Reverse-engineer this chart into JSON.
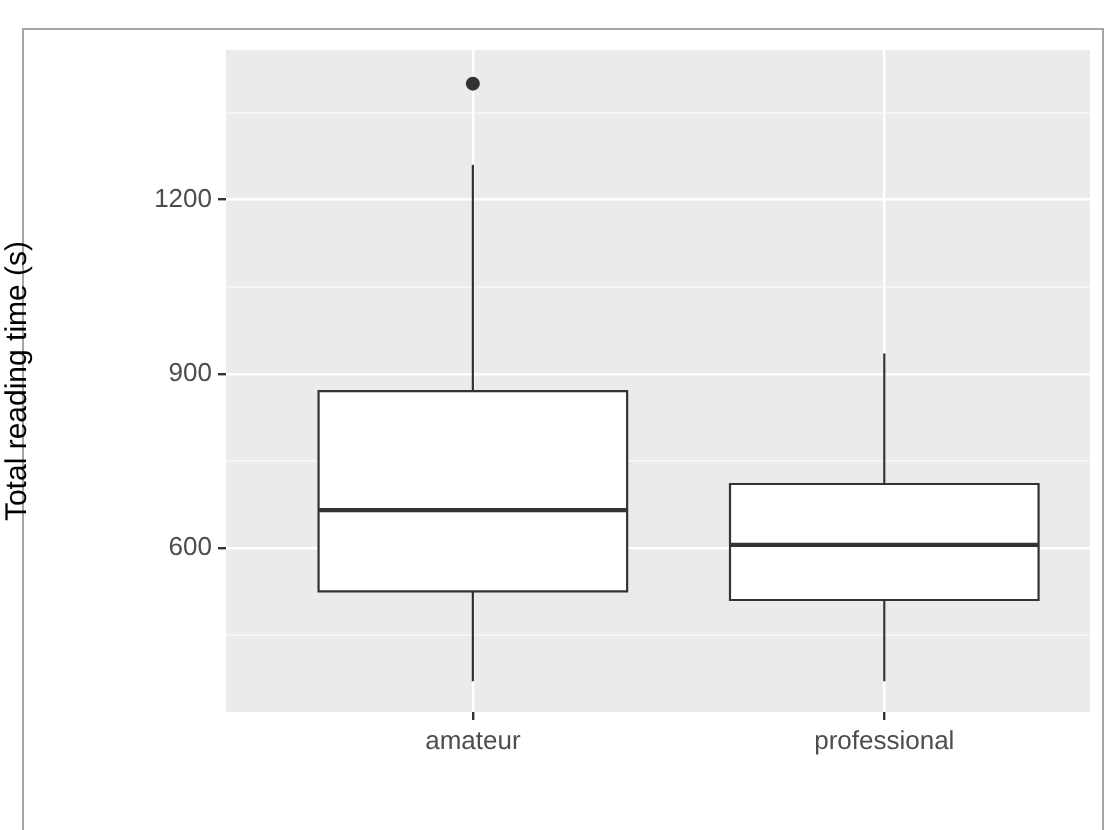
{
  "chart_data": {
    "type": "box",
    "ylabel": "Total reading time (s)",
    "categories": [
      "amateur",
      "professional"
    ],
    "boxes": [
      {
        "low": 370,
        "q1": 525,
        "median": 665,
        "q3": 870,
        "high": 1260,
        "outliers": [
          1400
        ]
      },
      {
        "low": 370,
        "q1": 510,
        "median": 605,
        "q3": 710,
        "high": 935
      }
    ],
    "ylim": [
      317,
      1458
    ],
    "yticks": [
      {
        "value": 450,
        "label": null
      },
      600,
      {
        "value": 750,
        "label": null
      },
      900,
      {
        "value": 1050,
        "label": null
      },
      1200,
      {
        "value": 1350,
        "label": null
      }
    ],
    "grid": true
  }
}
